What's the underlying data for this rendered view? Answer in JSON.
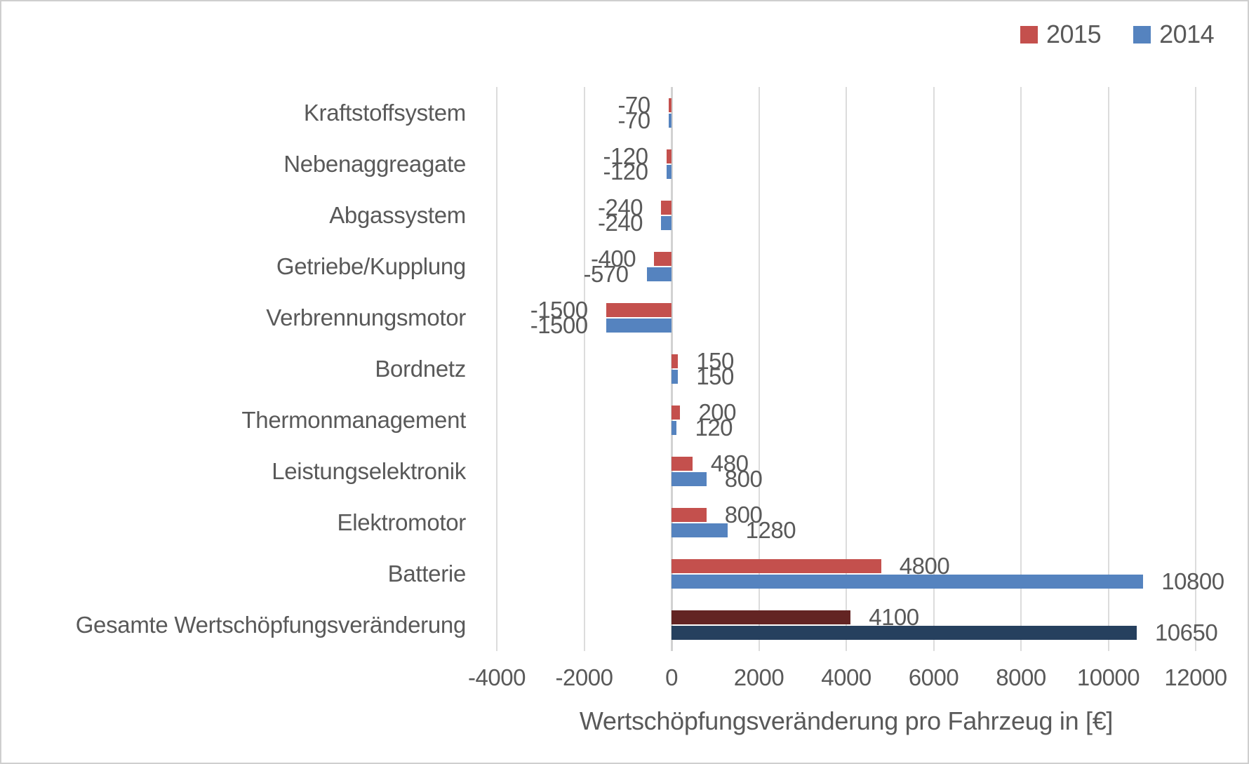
{
  "chart_data": {
    "type": "bar",
    "orientation": "horizontal",
    "title": "",
    "xlabel": "Wertschöpfungsveränderung pro Fahrzeug in [€]",
    "ylabel": "",
    "categories": [
      "Kraftstoffsystem",
      "Nebenaggreagate",
      "Abgassystem",
      "Getriebe/Kupplung",
      "Verbrennungsmotor",
      "Bordnetz",
      "Thermonmanagement",
      "Leistungselektronik",
      "Elektromotor",
      "Batterie",
      "Gesamte Wertschöpfungsveränderung"
    ],
    "series": [
      {
        "name": "2015",
        "color": "#C4504D",
        "values": [
          -70,
          -120,
          -240,
          -400,
          -1500,
          150,
          200,
          480,
          800,
          4800,
          4100
        ]
      },
      {
        "name": "2014",
        "color": "#5583BF",
        "values": [
          -70,
          -120,
          -240,
          -570,
          -1500,
          150,
          120,
          800,
          1280,
          10800,
          10650
        ]
      }
    ],
    "highlight_category_index": 10,
    "highlight_colors": {
      "2015": "#632423",
      "2014": "#26405E"
    },
    "value_labels": true,
    "grid": true,
    "legend_position": "top-right",
    "xlim": [
      -4000,
      12000
    ],
    "x_ticks": [
      "-4000",
      "-2000",
      "0",
      "2000",
      "4000",
      "6000",
      "8000",
      "10000",
      "12000"
    ],
    "x_tick_values": [
      -4000,
      -2000,
      0,
      2000,
      4000,
      6000,
      8000,
      10000,
      12000
    ]
  },
  "legend": {
    "items": [
      {
        "label": "2015",
        "color": "#C4504D"
      },
      {
        "label": "2014",
        "color": "#5583BF"
      }
    ]
  },
  "colors": {
    "text": "#595959",
    "gridline": "#dcdcdc",
    "zero_axis": "#d2d2d2",
    "border": "#cfcfcf",
    "background": "#ffffff"
  }
}
